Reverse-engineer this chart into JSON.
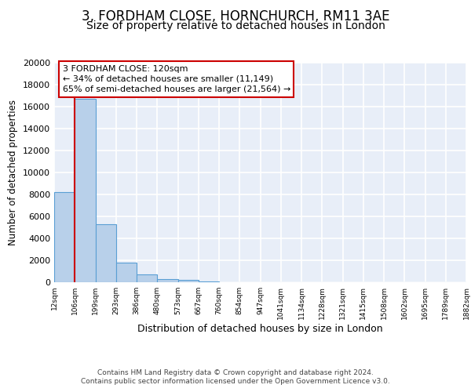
{
  "title": "3, FORDHAM CLOSE, HORNCHURCH, RM11 3AE",
  "subtitle": "Size of property relative to detached houses in London",
  "xlabel": "Distribution of detached houses by size in London",
  "ylabel": "Number of detached properties",
  "categories": [
    "12sqm",
    "106sqm",
    "199sqm",
    "293sqm",
    "386sqm",
    "480sqm",
    "573sqm",
    "667sqm",
    "760sqm",
    "854sqm",
    "947sqm",
    "1041sqm",
    "1134sqm",
    "1228sqm",
    "1321sqm",
    "1415sqm",
    "1508sqm",
    "1602sqm",
    "1695sqm",
    "1789sqm",
    "1882sqm"
  ],
  "bar_values": [
    8200,
    16700,
    5300,
    1800,
    750,
    300,
    250,
    50,
    0,
    0,
    0,
    0,
    0,
    0,
    0,
    0,
    0,
    0,
    0,
    0
  ],
  "bar_color": "#b8d0ea",
  "bar_edge_color": "#5a9fd4",
  "red_line_x": 1,
  "annotation_title": "3 FORDHAM CLOSE: 120sqm",
  "annotation_line1": "← 34% of detached houses are smaller (11,149)",
  "annotation_line2": "65% of semi-detached houses are larger (21,564) →",
  "annotation_box_color": "#ffffff",
  "annotation_box_edge": "#cc0000",
  "red_line_color": "#cc0000",
  "footer_line1": "Contains HM Land Registry data © Crown copyright and database right 2024.",
  "footer_line2": "Contains public sector information licensed under the Open Government Licence v3.0.",
  "ylim": [
    0,
    20000
  ],
  "yticks": [
    0,
    2000,
    4000,
    6000,
    8000,
    10000,
    12000,
    14000,
    16000,
    18000,
    20000
  ],
  "plot_bg": "#e8eef8",
  "grid_color": "#ffffff",
  "title_fontsize": 12,
  "subtitle_fontsize": 10,
  "xlabel_fontsize": 9,
  "ylabel_fontsize": 8.5
}
